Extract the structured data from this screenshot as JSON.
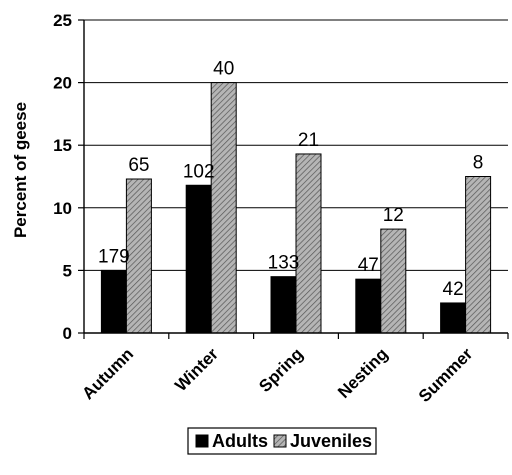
{
  "chart_data": {
    "type": "bar",
    "title": "",
    "xlabel": "",
    "ylabel": "Percent of geese",
    "ylim": [
      0,
      25
    ],
    "yticks": [
      0,
      5,
      10,
      15,
      20,
      25
    ],
    "grid": true,
    "legend_position": "bottom",
    "categories": [
      "Autumn",
      "Winter",
      "Spring",
      "Nesting",
      "Summer"
    ],
    "series": [
      {
        "name": "Adults",
        "color": "#000000",
        "pattern": "solid",
        "values": [
          5.0,
          11.8,
          4.5,
          4.3,
          2.4
        ],
        "labels": [
          "179",
          "102",
          "133",
          "47",
          "42"
        ]
      },
      {
        "name": "Juveniles",
        "color": "#9a9a9a",
        "pattern": "hatched",
        "values": [
          12.3,
          20.0,
          14.3,
          8.3,
          12.5
        ],
        "labels": [
          "65",
          "40",
          "21",
          "12",
          "8"
        ]
      }
    ]
  }
}
